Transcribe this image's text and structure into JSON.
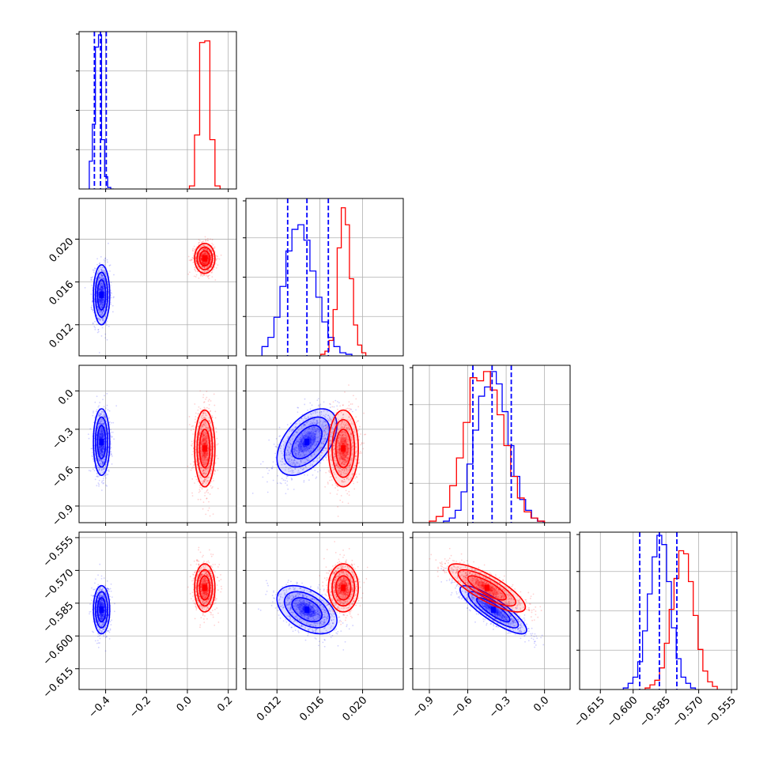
{
  "chart_data": {
    "type": "corner",
    "colors": {
      "blue": "#0000ff",
      "red": "#ff0000",
      "grid": "#b0b0b0"
    },
    "parameters": [
      {
        "ticks": [
          "−0.4",
          "−0.2",
          "0.0",
          "0.2"
        ],
        "tick_values": [
          -0.4,
          -0.2,
          0.0,
          0.2
        ],
        "range": [
          -0.53,
          0.24
        ]
      },
      {
        "ticks": [
          "0.012",
          "0.016",
          "0.020"
        ],
        "tick_values": [
          0.012,
          0.016,
          0.02
        ],
        "range": [
          0.0091,
          0.0238
        ]
      },
      {
        "ticks": [
          "−0.9",
          "−0.6",
          "−0.3",
          "0.0"
        ],
        "tick_values": [
          -0.9,
          -0.6,
          -0.3,
          0.0
        ],
        "range": [
          -1.03,
          0.2
        ]
      },
      {
        "ticks": [
          "−0.615",
          "−0.600",
          "−0.585",
          "−0.570",
          "−0.555"
        ],
        "tick_values": [
          -0.615,
          -0.6,
          -0.585,
          -0.57,
          -0.555
        ],
        "range": [
          -0.6245,
          -0.5525
        ]
      }
    ],
    "quantiles_blue": [
      [
        -0.455,
        -0.425,
        -0.397
      ],
      [
        0.013,
        0.0148,
        0.0168
      ],
      [
        -0.56,
        -0.41,
        -0.26
      ],
      [
        -0.597,
        -0.588,
        -0.58
      ]
    ],
    "series": [
      {
        "color": "blue",
        "means": [
          -0.42,
          0.0148,
          -0.4,
          -0.588
        ],
        "stds": [
          0.02,
          0.0014,
          0.13,
          0.0055
        ],
        "corr": [
          [
            1,
            0,
            0,
            0
          ],
          [
            0,
            1,
            0.5,
            -0.45
          ],
          [
            0,
            0.5,
            1,
            -0.85
          ],
          [
            0,
            -0.45,
            -0.85,
            1
          ]
        ],
        "hist": [
          [
            0.18,
            0.42,
            0.92,
            1.0,
            0.32,
            0.08,
            0.01,
            0
          ],
          [
            0.06,
            0.12,
            0.25,
            0.45,
            0.68,
            0.82,
            0.85,
            0.75,
            0.55,
            0.38,
            0.22,
            0.12,
            0.06,
            0.02,
            0.01
          ],
          [
            0.01,
            0.03,
            0.08,
            0.2,
            0.38,
            0.6,
            0.82,
            0.88,
            0.98,
            0.9,
            0.72,
            0.5,
            0.3,
            0.15,
            0.08,
            0.03,
            0.01
          ],
          [
            0.01,
            0.04,
            0.08,
            0.18,
            0.38,
            0.62,
            0.86,
            1.0,
            0.94,
            0.7,
            0.4,
            0.2,
            0.08,
            0.04,
            0.01
          ]
        ]
      },
      {
        "color": "red",
        "means": [
          0.085,
          0.0182,
          -0.45,
          -0.578
        ],
        "stds": [
          0.025,
          0.0007,
          0.15,
          0.0055
        ],
        "corr": [
          [
            1,
            0,
            0,
            0
          ],
          [
            0,
            1,
            0,
            0
          ],
          [
            0,
            0,
            1,
            -0.8
          ],
          [
            0,
            0,
            -0.8,
            1
          ]
        ],
        "hist": [
          [
            0.02,
            0.35,
            0.95,
            0.96,
            0.32,
            0.02
          ],
          [
            0.01,
            0.03,
            0.1,
            0.3,
            0.7,
            0.96,
            0.85,
            0.5,
            0.2,
            0.07,
            0.02
          ],
          [
            0.01,
            0.04,
            0.1,
            0.24,
            0.42,
            0.65,
            0.94,
            0.92,
            0.98,
            0.86,
            0.7,
            0.5,
            0.3,
            0.16,
            0.07,
            0.03,
            0.01
          ],
          [
            0.01,
            0.03,
            0.06,
            0.14,
            0.3,
            0.52,
            0.72,
            0.9,
            0.88,
            0.7,
            0.48,
            0.26,
            0.12,
            0.05,
            0.02
          ]
        ]
      }
    ]
  }
}
